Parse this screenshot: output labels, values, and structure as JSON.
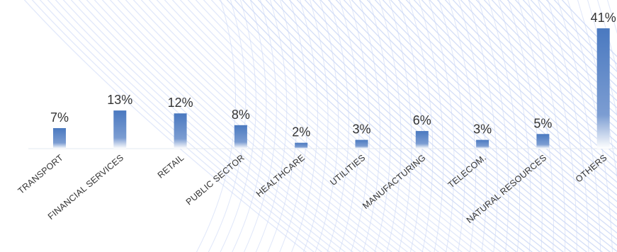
{
  "chart_data": {
    "type": "bar",
    "categories": [
      "TRANSPORT",
      "FINANCIAL SERVICES",
      "RETAIL",
      "PUBLIC SECTOR",
      "HEALTHCARE",
      "UTILITIES",
      "MANUFACTURING",
      "TELECOM.",
      "NATURAL RESOURCES",
      "OTHERS"
    ],
    "values": [
      7,
      13,
      12,
      8,
      2,
      3,
      6,
      3,
      5,
      41
    ],
    "value_labels": [
      "7%",
      "13%",
      "12%",
      "8%",
      "2%",
      "3%",
      "6%",
      "3%",
      "5%",
      "41%"
    ],
    "unit": "%",
    "title": "",
    "xlabel": "",
    "ylabel": "",
    "ylim": [
      0,
      41
    ],
    "grid": false,
    "legend": "none",
    "colors": {
      "bar_top": "#4a79c0",
      "bar_bottom": "#ffffff",
      "baseline": "#e3e8f1",
      "background_pattern": "#c9d6f5",
      "text": "#333333"
    }
  }
}
